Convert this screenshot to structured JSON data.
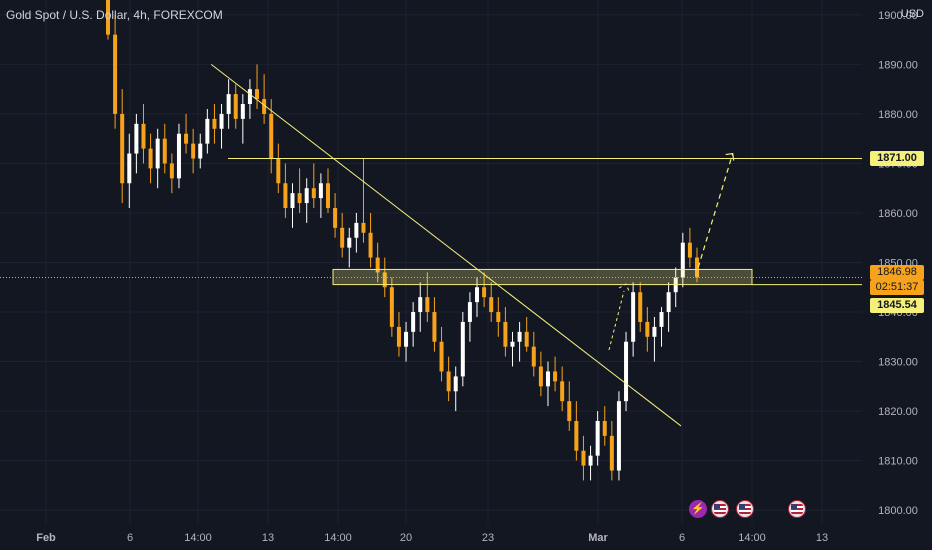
{
  "header": {
    "title": "Gold Spot / U.S. Dollar, 4h, FOREXCOM",
    "currency": "USD"
  },
  "colors": {
    "bg": "#131722",
    "up": "#ffffff",
    "down": "#f7a21b",
    "accent": "#f5f07a",
    "text": "#b2b5be",
    "grid": "#1e2230"
  },
  "price_tags": {
    "resistance": "1871.00",
    "last_price": "1846.98",
    "countdown": "02:51:37",
    "zone_low": "1845.54"
  },
  "events": [
    {
      "icon": "lightning-icon"
    },
    {
      "icon": "us-flag-icon"
    },
    {
      "icon": "us-flag-icon"
    },
    {
      "icon": "us-flag-icon"
    }
  ],
  "chart_data": {
    "type": "candlestick",
    "title": "Gold Spot / U.S. Dollar, 4h, FOREXCOM",
    "ylim": [
      1797,
      1903
    ],
    "y_ticks": [
      "1800.00",
      "1810.00",
      "1820.00",
      "1830.00",
      "1840.00",
      "1850.00",
      "1860.00",
      "1870.00",
      "1880.00",
      "1890.00",
      "1900.00"
    ],
    "x_ticks": [
      "Feb",
      "6",
      "14:00",
      "13",
      "14:00",
      "20",
      "23",
      "Mar",
      "6",
      "14:00",
      "13"
    ],
    "candles": [
      [
        1912,
        1918,
        1895,
        1896
      ],
      [
        1896,
        1900,
        1877,
        1880
      ],
      [
        1880,
        1885,
        1862,
        1866
      ],
      [
        1866,
        1876,
        1861,
        1872
      ],
      [
        1872,
        1880,
        1868,
        1878
      ],
      [
        1878,
        1882,
        1870,
        1873
      ],
      [
        1873,
        1876,
        1866,
        1869
      ],
      [
        1869,
        1877,
        1865,
        1875
      ],
      [
        1875,
        1878,
        1868,
        1870
      ],
      [
        1870,
        1872,
        1864,
        1867
      ],
      [
        1867,
        1878,
        1865,
        1876
      ],
      [
        1876,
        1880,
        1872,
        1874
      ],
      [
        1874,
        1877,
        1868,
        1871
      ],
      [
        1871,
        1876,
        1869,
        1874
      ],
      [
        1874,
        1881,
        1872,
        1879
      ],
      [
        1879,
        1882,
        1874,
        1877
      ],
      [
        1877,
        1882,
        1873,
        1880
      ],
      [
        1880,
        1887,
        1877,
        1884
      ],
      [
        1884,
        1886,
        1877,
        1879
      ],
      [
        1879,
        1884,
        1874,
        1882
      ],
      [
        1882,
        1887,
        1879,
        1885
      ],
      [
        1885,
        1890,
        1881,
        1883
      ],
      [
        1883,
        1888,
        1878,
        1880
      ],
      [
        1880,
        1883,
        1868,
        1871
      ],
      [
        1871,
        1874,
        1864,
        1866
      ],
      [
        1866,
        1870,
        1859,
        1861
      ],
      [
        1861,
        1866,
        1857,
        1864
      ],
      [
        1864,
        1869,
        1860,
        1862
      ],
      [
        1862,
        1867,
        1858,
        1865
      ],
      [
        1865,
        1870,
        1861,
        1863
      ],
      [
        1863,
        1868,
        1859,
        1866
      ],
      [
        1866,
        1869,
        1860,
        1861
      ],
      [
        1861,
        1864,
        1855,
        1857
      ],
      [
        1857,
        1860,
        1851,
        1853
      ],
      [
        1853,
        1857,
        1849,
        1855
      ],
      [
        1855,
        1860,
        1852,
        1858
      ],
      [
        1858,
        1871,
        1854,
        1856
      ],
      [
        1856,
        1860,
        1849,
        1851
      ],
      [
        1851,
        1854,
        1846,
        1848
      ],
      [
        1848,
        1851,
        1843,
        1845
      ],
      [
        1845,
        1847,
        1835,
        1837
      ],
      [
        1837,
        1840,
        1831,
        1833
      ],
      [
        1833,
        1838,
        1830,
        1836
      ],
      [
        1836,
        1842,
        1833,
        1840
      ],
      [
        1840,
        1846,
        1836,
        1843
      ],
      [
        1843,
        1848,
        1838,
        1840
      ],
      [
        1840,
        1843,
        1832,
        1834
      ],
      [
        1834,
        1837,
        1826,
        1828
      ],
      [
        1828,
        1831,
        1822,
        1824
      ],
      [
        1824,
        1829,
        1820,
        1827
      ],
      [
        1827,
        1840,
        1825,
        1838
      ],
      [
        1838,
        1844,
        1834,
        1842
      ],
      [
        1842,
        1847,
        1839,
        1845
      ],
      [
        1845,
        1848,
        1841,
        1843
      ],
      [
        1843,
        1846,
        1838,
        1840
      ],
      [
        1840,
        1843,
        1835,
        1838
      ],
      [
        1838,
        1841,
        1831,
        1833
      ],
      [
        1833,
        1836,
        1829,
        1834
      ],
      [
        1834,
        1838,
        1830,
        1836
      ],
      [
        1836,
        1839,
        1832,
        1833
      ],
      [
        1833,
        1836,
        1827,
        1829
      ],
      [
        1829,
        1832,
        1823,
        1825
      ],
      [
        1825,
        1830,
        1821,
        1828
      ],
      [
        1828,
        1831,
        1824,
        1826
      ],
      [
        1826,
        1829,
        1820,
        1822
      ],
      [
        1822,
        1826,
        1816,
        1818
      ],
      [
        1818,
        1822,
        1810,
        1812
      ],
      [
        1812,
        1815,
        1806,
        1809
      ],
      [
        1809,
        1813,
        1806,
        1811
      ],
      [
        1811,
        1820,
        1809,
        1818
      ],
      [
        1818,
        1821,
        1813,
        1815
      ],
      [
        1815,
        1818,
        1806,
        1808
      ],
      [
        1808,
        1824,
        1806,
        1822
      ],
      [
        1822,
        1836,
        1820,
        1834
      ],
      [
        1834,
        1846,
        1831,
        1844
      ],
      [
        1844,
        1846,
        1836,
        1838
      ],
      [
        1838,
        1841,
        1832,
        1835
      ],
      [
        1835,
        1839,
        1830,
        1837
      ],
      [
        1837,
        1841,
        1833,
        1840
      ],
      [
        1840,
        1846,
        1836,
        1844
      ],
      [
        1844,
        1849,
        1841,
        1847
      ],
      [
        1847,
        1856,
        1845,
        1854
      ],
      [
        1854,
        1857,
        1849,
        1851
      ],
      [
        1851,
        1853,
        1846,
        1847
      ]
    ],
    "drawings": {
      "trendline": [
        [
          0.245,
          1890
        ],
        [
          0.79,
          1817
        ]
      ],
      "resistance_level": 1871.0,
      "support_zone": [
        1845.54,
        1848.6
      ],
      "projection": [
        [
          0.81,
          1849
        ],
        [
          0.85,
          1872
        ]
      ],
      "current_price": 1846.98
    }
  }
}
